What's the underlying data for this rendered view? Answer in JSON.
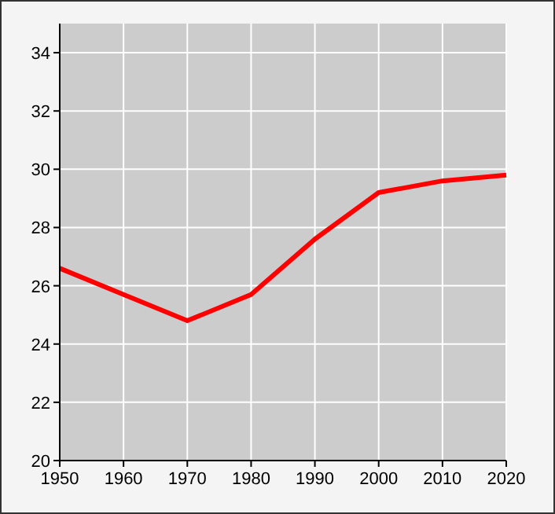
{
  "chart_data": {
    "type": "line",
    "x": [
      1950,
      1960,
      1970,
      1980,
      1990,
      2000,
      2010,
      2020
    ],
    "series": [
      {
        "color": "#ff0000",
        "values": [
          26.6,
          25.7,
          24.8,
          25.7,
          27.6,
          29.2,
          29.6,
          29.8
        ]
      }
    ],
    "xlim": [
      1950,
      2020
    ],
    "xticks": [
      1950,
      1960,
      1970,
      1980,
      1990,
      2000,
      2010,
      2020
    ],
    "ylim": [
      20,
      35
    ],
    "yticks": [
      20,
      22,
      24,
      26,
      28,
      30,
      32,
      34
    ],
    "grid": true,
    "marker": "none",
    "line_style": "solid"
  }
}
